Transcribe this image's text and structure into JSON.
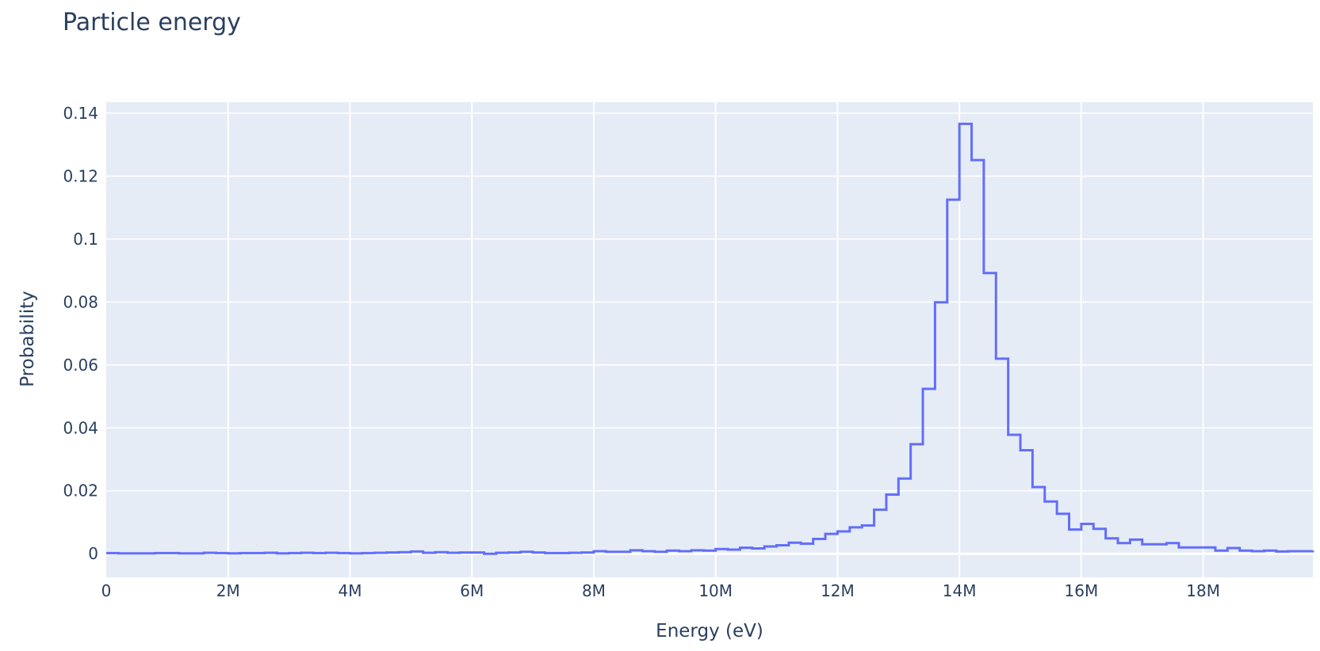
{
  "chart_data": {
    "type": "line",
    "line_shape": "step",
    "title": "Particle energy",
    "xlabel": "Energy (eV)",
    "ylabel": "Probability",
    "xlim": [
      0,
      19800000
    ],
    "ylim": [
      -0.0075,
      0.1435
    ],
    "x_ticks": [
      {
        "value": 0,
        "label": "0"
      },
      {
        "value": 2000000,
        "label": "2M"
      },
      {
        "value": 4000000,
        "label": "4M"
      },
      {
        "value": 6000000,
        "label": "6M"
      },
      {
        "value": 8000000,
        "label": "8M"
      },
      {
        "value": 10000000,
        "label": "10M"
      },
      {
        "value": 12000000,
        "label": "12M"
      },
      {
        "value": 14000000,
        "label": "14M"
      },
      {
        "value": 16000000,
        "label": "16M"
      },
      {
        "value": 18000000,
        "label": "18M"
      }
    ],
    "y_ticks": [
      {
        "value": 0,
        "label": "0"
      },
      {
        "value": 0.02,
        "label": "0.02"
      },
      {
        "value": 0.04,
        "label": "0.04"
      },
      {
        "value": 0.06,
        "label": "0.06"
      },
      {
        "value": 0.08,
        "label": "0.08"
      },
      {
        "value": 0.1,
        "label": "0.1"
      },
      {
        "value": 0.12,
        "label": "0.12"
      },
      {
        "value": 0.14,
        "label": "0.14"
      }
    ],
    "grid": true,
    "colors": {
      "line": "#636efa",
      "plot_bg": "#e5ecf6",
      "grid": "#ffffff",
      "text": "#2a3f5f"
    },
    "series": [
      {
        "bin_width": 200000,
        "x_start": 0,
        "values": [
          0.0002,
          0.0001,
          0.0001,
          0.0001,
          0.0002,
          0.0002,
          0.0001,
          0.0001,
          0.0003,
          0.0002,
          0.0001,
          0.0002,
          0.0002,
          0.0003,
          0.0001,
          0.0002,
          0.0003,
          0.0002,
          0.0003,
          0.0002,
          0.0001,
          0.0002,
          0.0003,
          0.0004,
          0.0005,
          0.0007,
          0.0003,
          0.0005,
          0.0003,
          0.0004,
          0.0004,
          0.0,
          0.0003,
          0.0004,
          0.0006,
          0.0004,
          0.0002,
          0.0002,
          0.0003,
          0.0004,
          0.0008,
          0.0006,
          0.0006,
          0.0011,
          0.0008,
          0.0006,
          0.001,
          0.0008,
          0.0011,
          0.001,
          0.0015,
          0.0013,
          0.0019,
          0.0017,
          0.0023,
          0.0027,
          0.0035,
          0.0032,
          0.0047,
          0.0063,
          0.0071,
          0.0084,
          0.009,
          0.014,
          0.0188,
          0.0239,
          0.0348,
          0.0524,
          0.0799,
          0.1125,
          0.1366,
          0.1251,
          0.0892,
          0.062,
          0.0378,
          0.0329,
          0.0212,
          0.0166,
          0.0127,
          0.0077,
          0.0095,
          0.0079,
          0.0049,
          0.0034,
          0.0045,
          0.003,
          0.003,
          0.0034,
          0.002,
          0.002,
          0.002,
          0.001,
          0.0018,
          0.001,
          0.0008,
          0.001,
          0.0007,
          0.0008,
          0.0008,
          0.001
        ]
      }
    ]
  }
}
